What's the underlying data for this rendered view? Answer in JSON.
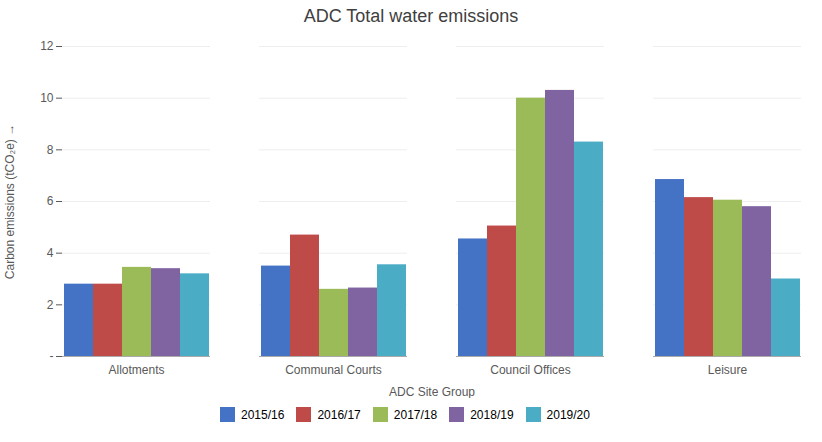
{
  "chart_data": {
    "type": "bar",
    "title": "ADC Total water emissions",
    "x_label": "ADC Site Group",
    "y_label": "Carbon emissions (tCO₂e)",
    "categories": [
      "Allotments",
      "Communal Courts",
      "Council Offices",
      "Leisure"
    ],
    "series": [
      {
        "name": "2015/16",
        "color": "#4472C4",
        "values": [
          2.8,
          3.5,
          4.55,
          6.85
        ]
      },
      {
        "name": "2016/17",
        "color": "#BE4B48",
        "values": [
          2.8,
          4.7,
          5.05,
          6.15
        ]
      },
      {
        "name": "2017/18",
        "color": "#9BBB59",
        "values": [
          3.45,
          2.6,
          10.0,
          6.05
        ]
      },
      {
        "name": "2018/19",
        "color": "#8064A2",
        "values": [
          3.4,
          2.65,
          10.3,
          5.8
        ]
      },
      {
        "name": "2019/20",
        "color": "#4BACC6",
        "values": [
          3.2,
          3.55,
          8.3,
          3.0
        ]
      }
    ],
    "ylim": [
      0,
      12
    ],
    "yticks": [
      {
        "value": 0,
        "label": "-"
      },
      2,
      4,
      6,
      8,
      10,
      12
    ],
    "grid": true,
    "legend": "bottom"
  }
}
